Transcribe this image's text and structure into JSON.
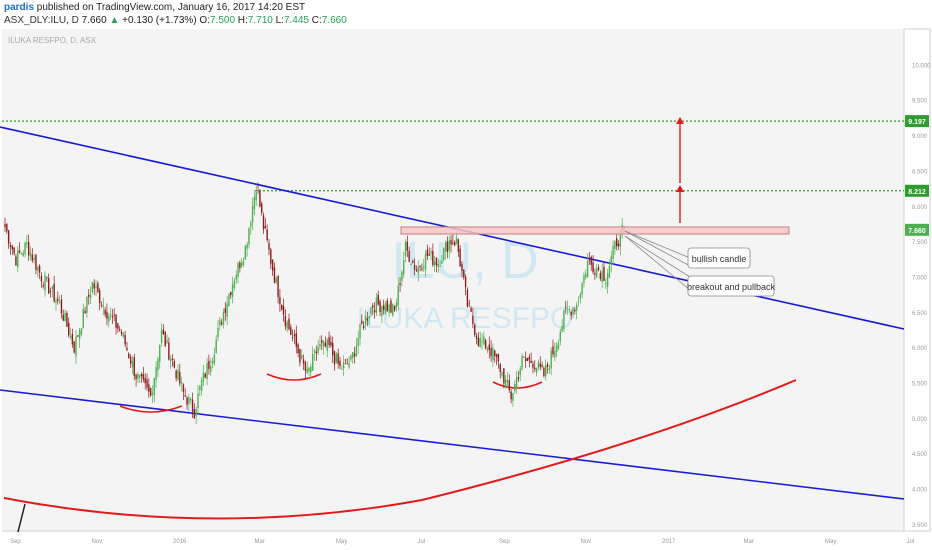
{
  "header": {
    "user": "pardis",
    "published_text": "published on TradingView.com, January 16, 2017 14:20 EST",
    "symbol": "ASX_DLY:ILU, D",
    "last": "7.660",
    "change_arrow": "▲",
    "change": "+0.130 (+1.73%)",
    "open_label": "O:",
    "open": "7.500",
    "high_label": "H:",
    "high": "7.710",
    "low_label": "L:",
    "low": "7.445",
    "close_label": "C:",
    "close": "7.660"
  },
  "chart_legend": "ILUKA RESFPO, D, ASX",
  "watermark": {
    "ticker": "ILU, D",
    "name": "ILUKA RESFPO"
  },
  "annotations": {
    "bullish_candle": "bullish candle",
    "breakout": "breakout and pullback"
  },
  "colors": {
    "up": "#4caf50",
    "down": "#8b1a1a",
    "trendline": "#1a1ad6",
    "arc": "#e31a1a",
    "target": "#2e9c2e",
    "zone_fill": "#f4c6c6",
    "zone_edge": "#c98080",
    "arrow": "#e31a1a"
  },
  "chart_data": {
    "type": "candlestick",
    "x_tick_labels": [
      "Sep",
      "Nov",
      "2016",
      "Mar",
      "May",
      "Jul",
      "Sep",
      "Nov",
      "2017",
      "Mar",
      "May",
      "Jul"
    ],
    "y_tick_labels": [
      "3.500",
      "4.000",
      "4.500",
      "5.000",
      "5.500",
      "6.000",
      "6.500",
      "7.000",
      "7.500",
      "8.000",
      "8.500",
      "9.000",
      "9.500",
      "10.000"
    ],
    "ylim": [
      3.4,
      10.5
    ],
    "price_tags": [
      {
        "value": 9.197,
        "label": "9.197",
        "color": "#2e9c2e"
      },
      {
        "value": 8.212,
        "label": "8.212",
        "color": "#2e9c2e"
      },
      {
        "value": 7.66,
        "label": "7.660",
        "color": "#4caf50"
      }
    ],
    "targets": [
      9.197,
      8.212
    ],
    "resistance_zone": [
      7.6,
      7.7
    ],
    "price_path": [
      {
        "i": 0,
        "p": 7.7
      },
      {
        "i": 6,
        "p": 7.25
      },
      {
        "i": 12,
        "p": 7.45
      },
      {
        "i": 20,
        "p": 7.0
      },
      {
        "i": 30,
        "p": 6.6
      },
      {
        "i": 38,
        "p": 6.0
      },
      {
        "i": 48,
        "p": 6.9
      },
      {
        "i": 56,
        "p": 6.5
      },
      {
        "i": 64,
        "p": 6.2
      },
      {
        "i": 72,
        "p": 5.6
      },
      {
        "i": 80,
        "p": 5.3
      },
      {
        "i": 86,
        "p": 6.2
      },
      {
        "i": 92,
        "p": 5.8
      },
      {
        "i": 98,
        "p": 5.35
      },
      {
        "i": 104,
        "p": 5.1
      },
      {
        "i": 108,
        "p": 5.5
      },
      {
        "i": 114,
        "p": 5.9
      },
      {
        "i": 120,
        "p": 6.5
      },
      {
        "i": 126,
        "p": 7.0
      },
      {
        "i": 132,
        "p": 7.4
      },
      {
        "i": 138,
        "p": 8.3
      },
      {
        "i": 142,
        "p": 7.7
      },
      {
        "i": 148,
        "p": 7.0
      },
      {
        "i": 154,
        "p": 6.4
      },
      {
        "i": 160,
        "p": 6.0
      },
      {
        "i": 166,
        "p": 5.6
      },
      {
        "i": 172,
        "p": 6.0
      },
      {
        "i": 178,
        "p": 6.0
      },
      {
        "i": 184,
        "p": 5.7
      },
      {
        "i": 190,
        "p": 5.8
      },
      {
        "i": 196,
        "p": 6.3
      },
      {
        "i": 202,
        "p": 6.6
      },
      {
        "i": 208,
        "p": 6.6
      },
      {
        "i": 214,
        "p": 6.5
      },
      {
        "i": 220,
        "p": 7.4
      },
      {
        "i": 226,
        "p": 7.1
      },
      {
        "i": 232,
        "p": 7.3
      },
      {
        "i": 238,
        "p": 7.2
      },
      {
        "i": 244,
        "p": 7.5
      },
      {
        "i": 248,
        "p": 7.5
      },
      {
        "i": 254,
        "p": 6.6
      },
      {
        "i": 260,
        "p": 6.1
      },
      {
        "i": 266,
        "p": 6.0
      },
      {
        "i": 272,
        "p": 5.7
      },
      {
        "i": 278,
        "p": 5.3
      },
      {
        "i": 284,
        "p": 5.8
      },
      {
        "i": 290,
        "p": 5.8
      },
      {
        "i": 296,
        "p": 5.6
      },
      {
        "i": 302,
        "p": 6.0
      },
      {
        "i": 308,
        "p": 6.5
      },
      {
        "i": 314,
        "p": 6.6
      },
      {
        "i": 320,
        "p": 7.2
      },
      {
        "i": 326,
        "p": 7.1
      },
      {
        "i": 330,
        "p": 7.0
      },
      {
        "i": 336,
        "p": 7.5
      },
      {
        "i": 340,
        "p": 7.66
      }
    ]
  }
}
